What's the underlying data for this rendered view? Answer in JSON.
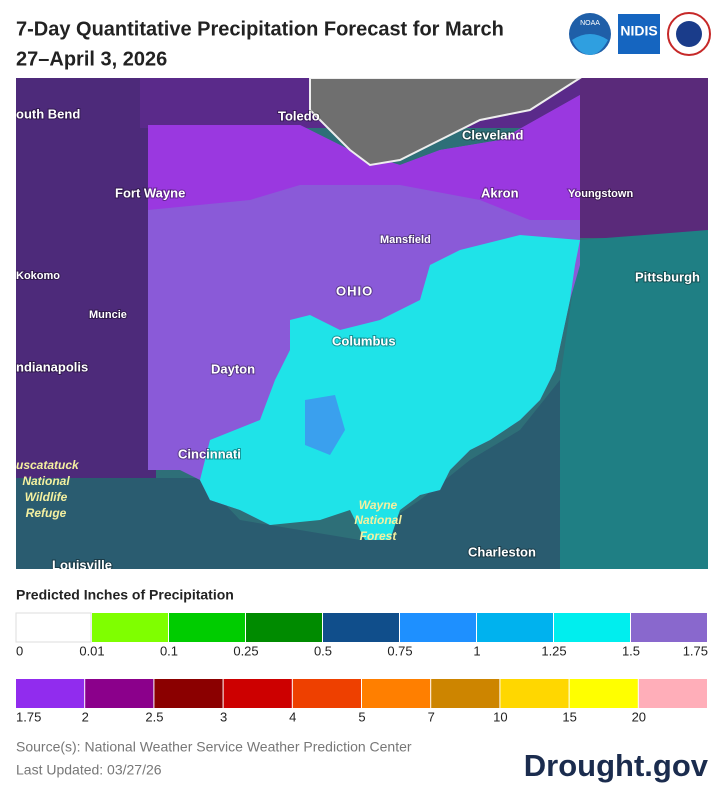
{
  "header": {
    "title_lines": [
      "7-Day Quantitative Precipitation Forecast for March",
      "27–April 3, 2026"
    ],
    "logos": [
      "NOAA",
      "NIDIS"
    ]
  },
  "map": {
    "labels": [
      "outh Bend",
      "Toledo",
      "Cleveland",
      "Fort Wayne",
      "Akron",
      "Youngstown",
      "Mansfield",
      "Kokomo",
      "Pittsburgh",
      "OHIO",
      "Muncie",
      "Columbus",
      "ndianapolis",
      "Dayton",
      "Cincinnati",
      "Charleston",
      "Louisville"
    ],
    "parks": [
      [
        "uscatatuck",
        "National",
        "Wildlife",
        "Refuge"
      ],
      [
        "Wayne",
        "National",
        "Forest"
      ]
    ]
  },
  "legend": {
    "title": "Predicted Inches of Precipitation",
    "rows": [
      {
        "colors": [
          "#ffffff",
          "#7fff00",
          "#00cc00",
          "#008b00",
          "#104e8b",
          "#1e90ff",
          "#00b2ee",
          "#00eeee",
          "#8968cd"
        ],
        "labels": [
          "0",
          "0.01",
          "0.1",
          "0.25",
          "0.5",
          "0.75",
          "1",
          "1.25",
          "1.5",
          "1.75"
        ]
      },
      {
        "colors": [
          "#912cee",
          "#8b008b",
          "#8b0000",
          "#cd0000",
          "#ee4000",
          "#ff7f00",
          "#cd8500",
          "#ffd700",
          "#ffff00",
          "#ffaeb9"
        ],
        "labels": [
          "1.75",
          "2",
          "2.5",
          "3",
          "4",
          "5",
          "7",
          "10",
          "15",
          "20"
        ]
      }
    ]
  },
  "footer": {
    "source": "Source(s): National Weather Service Weather Prediction Center",
    "updated": "Last Updated: 03/27/26",
    "brand": "Drought.gov"
  }
}
